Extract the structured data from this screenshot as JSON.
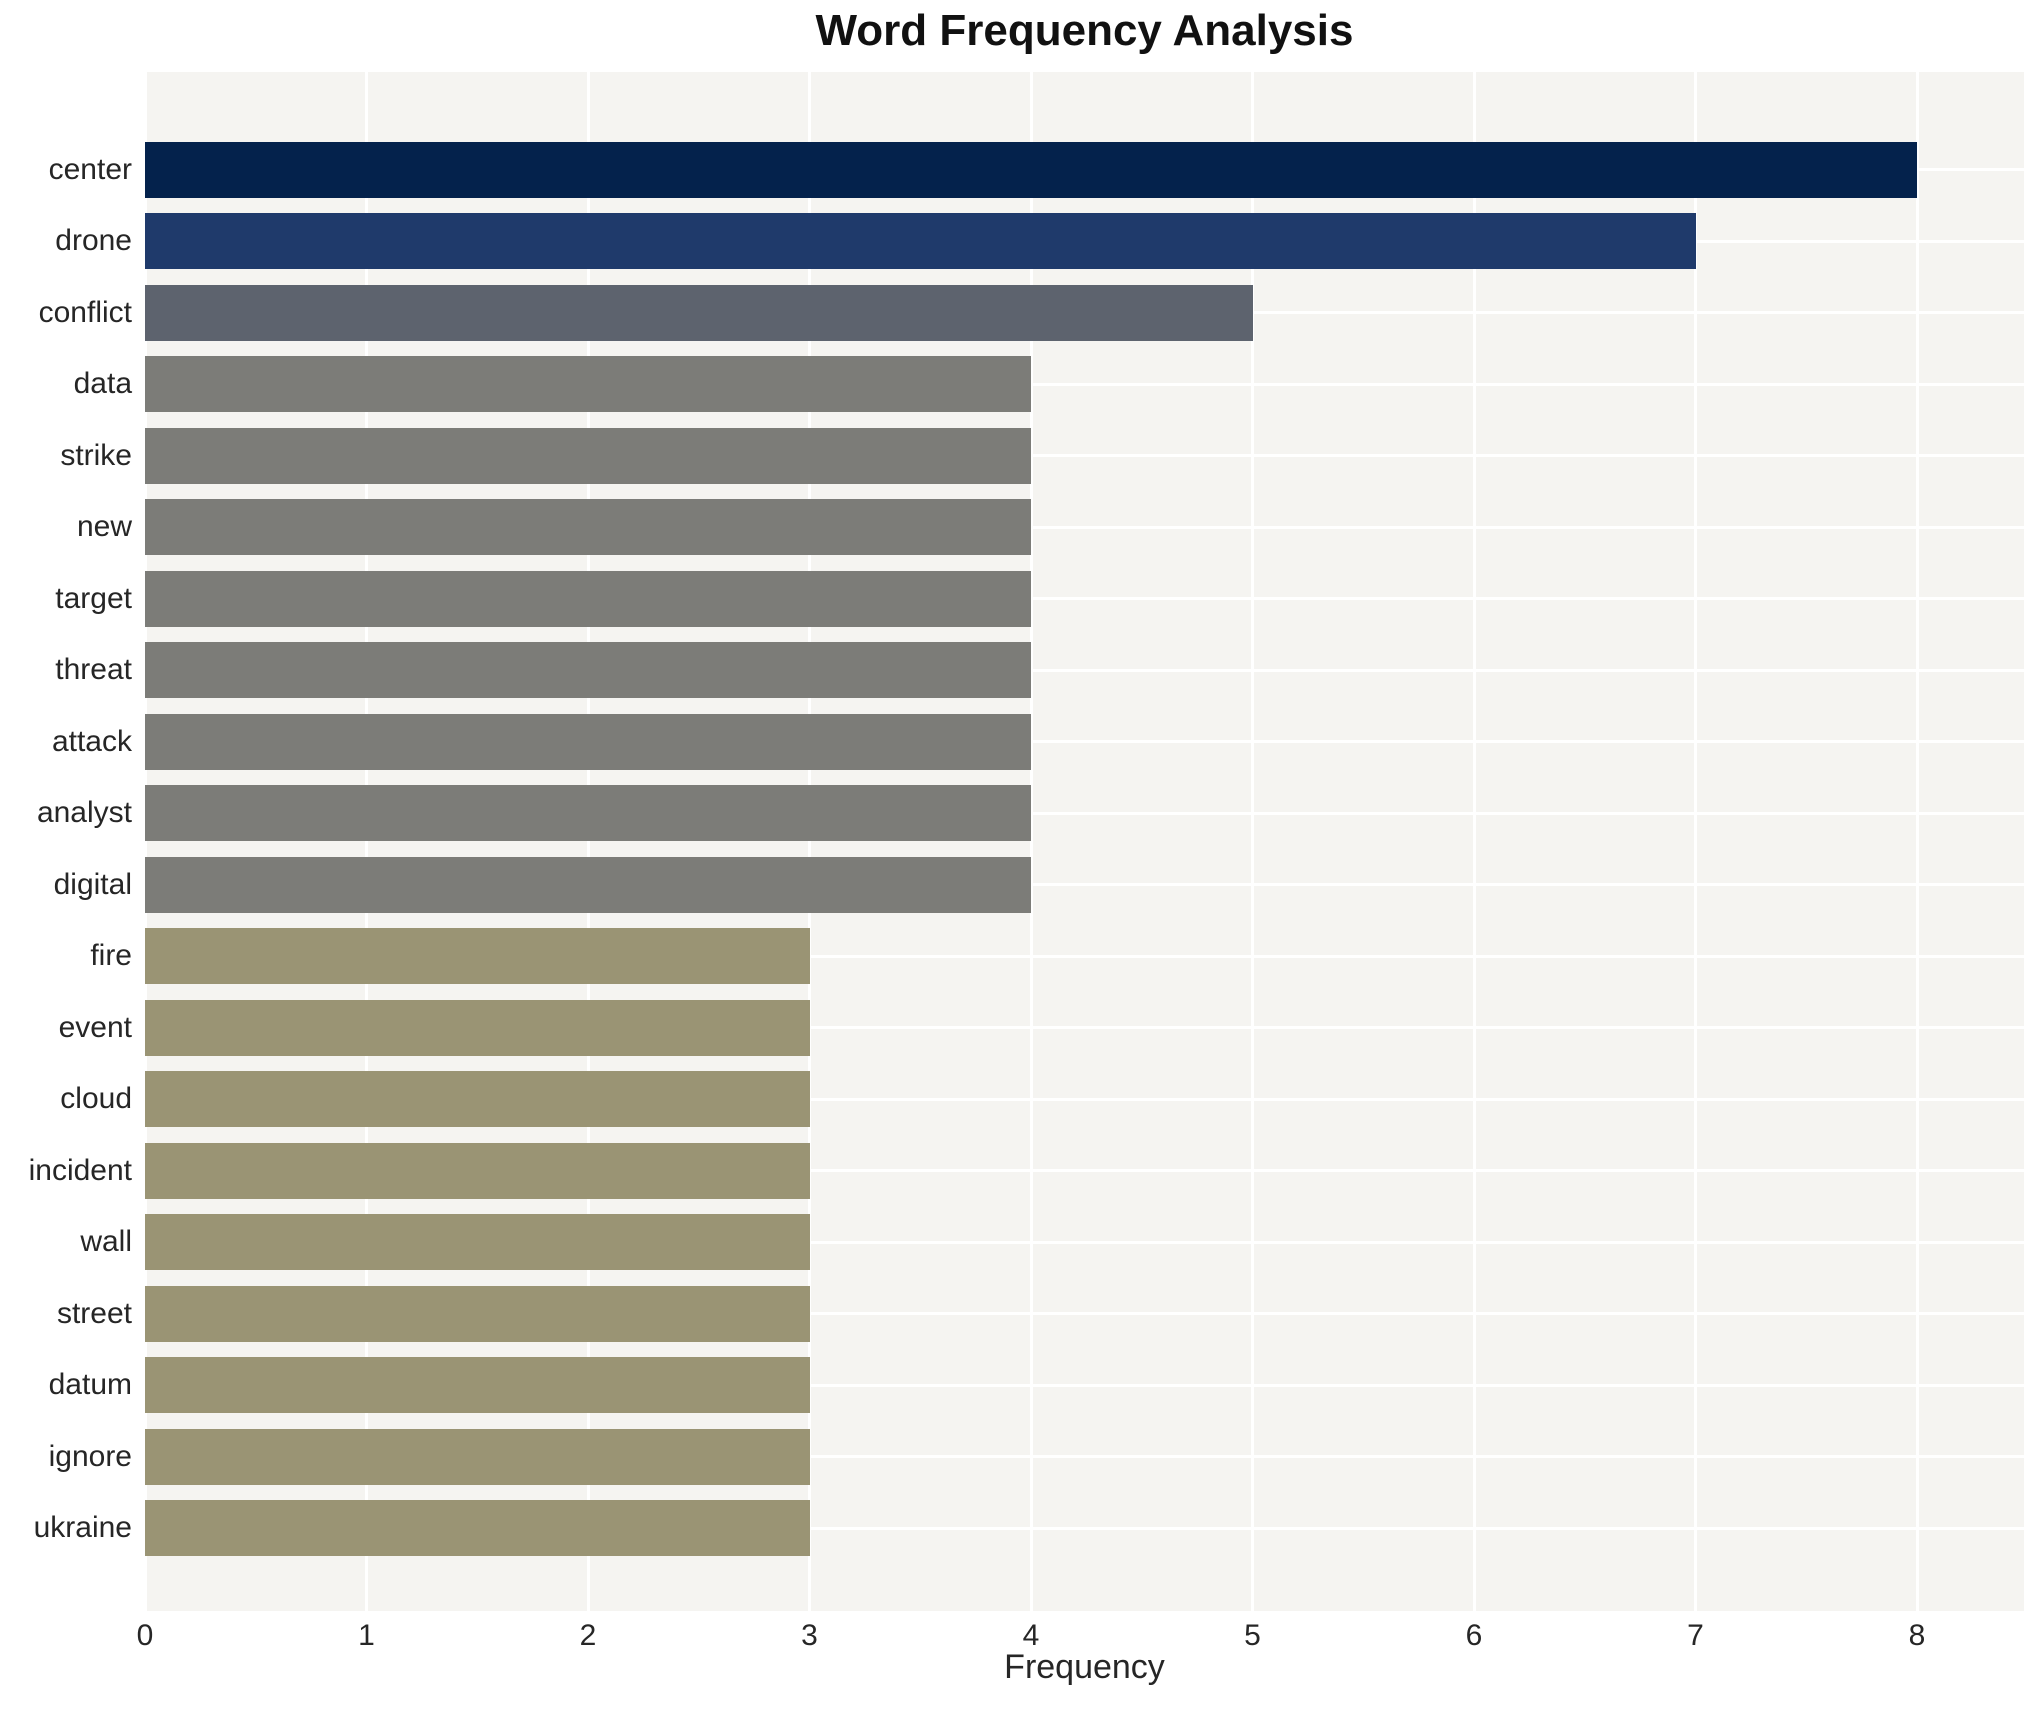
{
  "chart_data": {
    "type": "bar",
    "orientation": "horizontal",
    "title": "Word Frequency Analysis",
    "xlabel": "Frequency",
    "ylabel": "",
    "categories": [
      "center",
      "drone",
      "conflict",
      "data",
      "strike",
      "new",
      "target",
      "threat",
      "attack",
      "analyst",
      "digital",
      "fire",
      "event",
      "cloud",
      "incident",
      "wall",
      "street",
      "datum",
      "ignore",
      "ukraine"
    ],
    "values": [
      8,
      7,
      5,
      4,
      4,
      4,
      4,
      4,
      4,
      4,
      4,
      3,
      3,
      3,
      3,
      3,
      3,
      3,
      3,
      3
    ],
    "xticks": [
      0,
      1,
      2,
      3,
      4,
      5,
      6,
      7,
      8
    ],
    "xlim": [
      0,
      8.48
    ],
    "grid": true,
    "legend": false,
    "colors": {
      "bar_by_value": {
        "8": "#04224c",
        "7": "#1f3a6b",
        "5": "#5d636e",
        "4": "#7c7c78",
        "3": "#9a9474"
      },
      "plot_background": "#f5f4f1",
      "grid_color": "#ffffff",
      "title_color": "#111111",
      "tick_label_color": "#262626"
    }
  }
}
